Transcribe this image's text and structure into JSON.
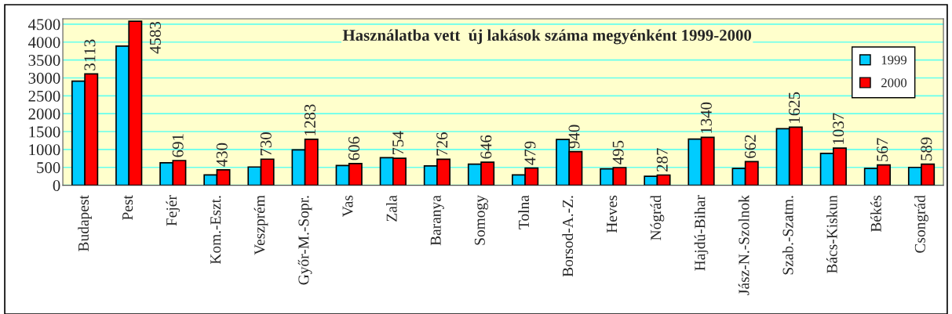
{
  "chart_data": {
    "type": "bar",
    "title": "Használatba vett  új lakások száma megyénként 1999-2000",
    "categories": [
      "Budapest",
      "Pest",
      "Fejér",
      "Kom.-Eszt.",
      "Veszprém",
      "Győr-M.-Sopr.",
      "Vas",
      "Zala",
      "Baranya",
      "Somogy",
      "Tolna",
      "Borsod-A.-Z.",
      "Heves",
      "Nógrád",
      "Hajdú-Bihar",
      "Jász-N.-Szolnok",
      "Szab.-Szatm.",
      "Bács-Kiskun",
      "Békés",
      "Csongrád"
    ],
    "series": [
      {
        "name": "1999",
        "color": "#00ccff",
        "values": [
          2910,
          3890,
          630,
          290,
          510,
          990,
          550,
          770,
          540,
          590,
          290,
          1280,
          460,
          250,
          1290,
          470,
          1580,
          890,
          470,
          500
        ]
      },
      {
        "name": "2000",
        "color": "#ff0000",
        "values": [
          3113,
          4583,
          691,
          430,
          730,
          1283,
          606,
          754,
          726,
          646,
          479,
          940,
          495,
          287,
          1340,
          662,
          1625,
          1037,
          567,
          589
        ],
        "value_labels": [
          "3113",
          "4583",
          "691",
          "430",
          "730",
          "1283",
          "606",
          "754",
          "726",
          "646",
          "479",
          "940",
          "495",
          "287",
          "1340",
          "662",
          "1625",
          "1037",
          "567",
          "589"
        ]
      }
    ],
    "ylim": [
      0,
      4650
    ],
    "yticks": [
      0,
      500,
      1000,
      1500,
      2000,
      2500,
      3000,
      3500,
      4000,
      4500
    ],
    "grid": "y",
    "legend": "top right"
  }
}
